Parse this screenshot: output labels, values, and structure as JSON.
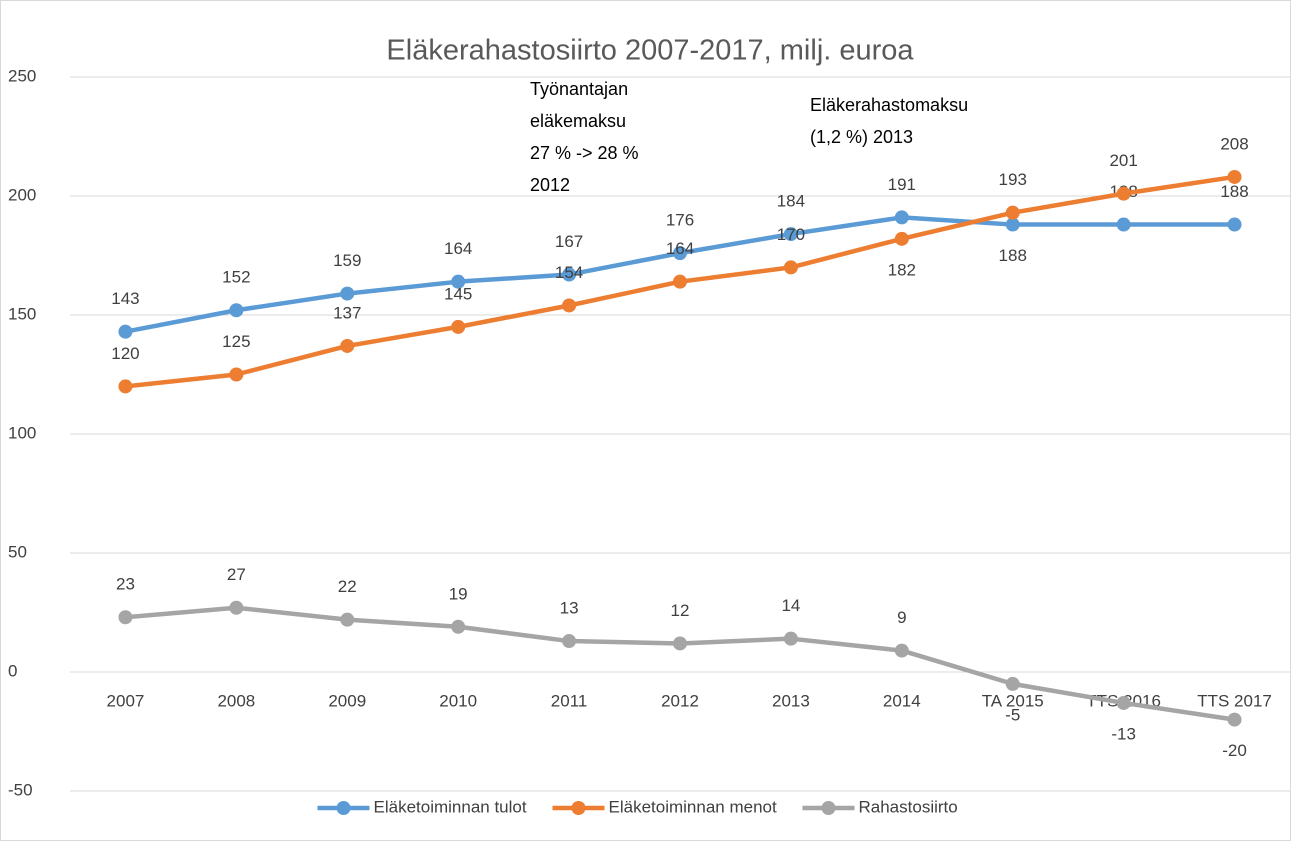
{
  "chart_data": {
    "type": "line",
    "title": "Eläkerahastosiirto 2007-2017, milj. euroa",
    "categories": [
      "2007",
      "2008",
      "2009",
      "2010",
      "2011",
      "2012",
      "2013",
      "2014",
      "TA 2015",
      "TTS 2016",
      "TTS 2017"
    ],
    "series": [
      {
        "name": "Eläketoiminnan tulot",
        "color": "#5b9bd5",
        "values": [
          143,
          152,
          159,
          164,
          167,
          176,
          184,
          191,
          188,
          188,
          188
        ]
      },
      {
        "name": "Eläketoiminnan menot",
        "color": "#ed7d31",
        "values": [
          120,
          125,
          137,
          145,
          154,
          164,
          170,
          182,
          193,
          201,
          208
        ]
      },
      {
        "name": "Rahastosiirto",
        "color": "#a5a5a5",
        "values": [
          23,
          27,
          22,
          19,
          13,
          12,
          14,
          9,
          -5,
          -13,
          -20
        ]
      }
    ],
    "ylim": [
      -50,
      250
    ],
    "yticks": [
      -50,
      0,
      50,
      100,
      150,
      200,
      250
    ],
    "grid": true,
    "legend": "bottom",
    "annotations": [
      [
        "Työnantajan",
        "eläkemaksu",
        "27 % -> 28 %",
        "2012"
      ],
      [
        "Eläkerahastomaksu",
        "(1,2 %) 2013"
      ]
    ]
  }
}
